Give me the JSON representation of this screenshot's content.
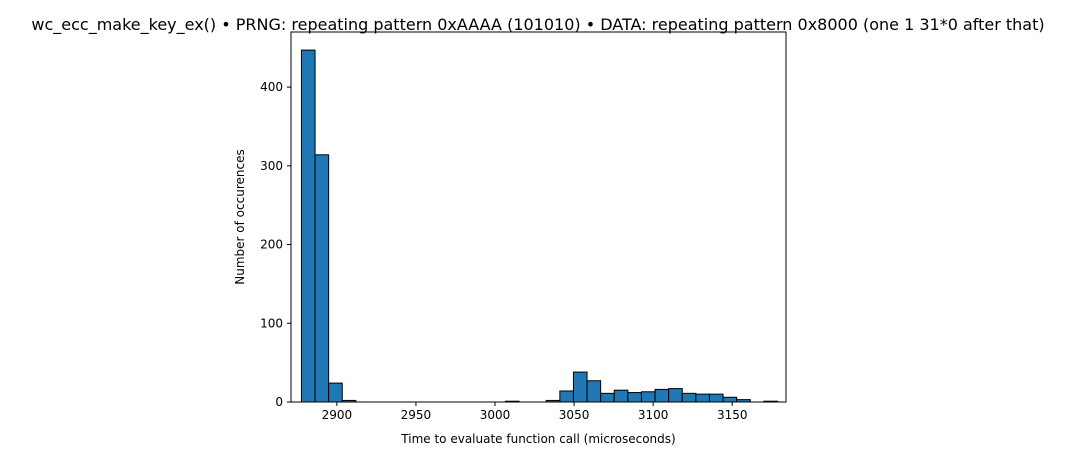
{
  "chart_data": {
    "type": "bar",
    "title": "wc_ecc_make_key_ex() • PRNG: repeating pattern 0xAAAA (101010) • DATA: repeating pattern 0x8000 (one 1 31*0 after that)",
    "xlabel": "Time to evaluate function call (microseconds)",
    "ylabel": "Number of occurences",
    "xlim": [
      2871,
      3184
    ],
    "ylim": [
      0,
      470
    ],
    "xticks": [
      2900,
      2950,
      3000,
      3050,
      3100,
      3150
    ],
    "yticks": [
      0,
      100,
      200,
      300,
      400
    ],
    "bin_width": 8.6,
    "bins": [
      {
        "start": 2877.6,
        "count": 447
      },
      {
        "start": 2886.2,
        "count": 314
      },
      {
        "start": 2894.8,
        "count": 24
      },
      {
        "start": 2903.4,
        "count": 2
      },
      {
        "start": 2912.0,
        "count": 0
      },
      {
        "start": 2920.6,
        "count": 0
      },
      {
        "start": 2929.2,
        "count": 0
      },
      {
        "start": 2937.8,
        "count": 0
      },
      {
        "start": 2946.4,
        "count": 0
      },
      {
        "start": 2955.0,
        "count": 0
      },
      {
        "start": 2963.6,
        "count": 0
      },
      {
        "start": 2972.2,
        "count": 0
      },
      {
        "start": 2980.8,
        "count": 0
      },
      {
        "start": 2989.4,
        "count": 0
      },
      {
        "start": 2998.0,
        "count": 0
      },
      {
        "start": 3006.6,
        "count": 1
      },
      {
        "start": 3015.2,
        "count": 0
      },
      {
        "start": 3023.8,
        "count": 0
      },
      {
        "start": 3032.4,
        "count": 2
      },
      {
        "start": 3041.0,
        "count": 14
      },
      {
        "start": 3049.6,
        "count": 38
      },
      {
        "start": 3058.2,
        "count": 27
      },
      {
        "start": 3066.8,
        "count": 11
      },
      {
        "start": 3075.4,
        "count": 15
      },
      {
        "start": 3084.0,
        "count": 12
      },
      {
        "start": 3092.6,
        "count": 13
      },
      {
        "start": 3101.2,
        "count": 16
      },
      {
        "start": 3109.8,
        "count": 17
      },
      {
        "start": 3118.4,
        "count": 11
      },
      {
        "start": 3127.0,
        "count": 10
      },
      {
        "start": 3135.6,
        "count": 10
      },
      {
        "start": 3144.2,
        "count": 6
      },
      {
        "start": 3152.8,
        "count": 3
      },
      {
        "start": 3161.4,
        "count": 0
      },
      {
        "start": 3170.0,
        "count": 1
      }
    ],
    "bar_color": "#1f77b4",
    "edge_color": "#000000",
    "grid": false,
    "legend": "none"
  }
}
